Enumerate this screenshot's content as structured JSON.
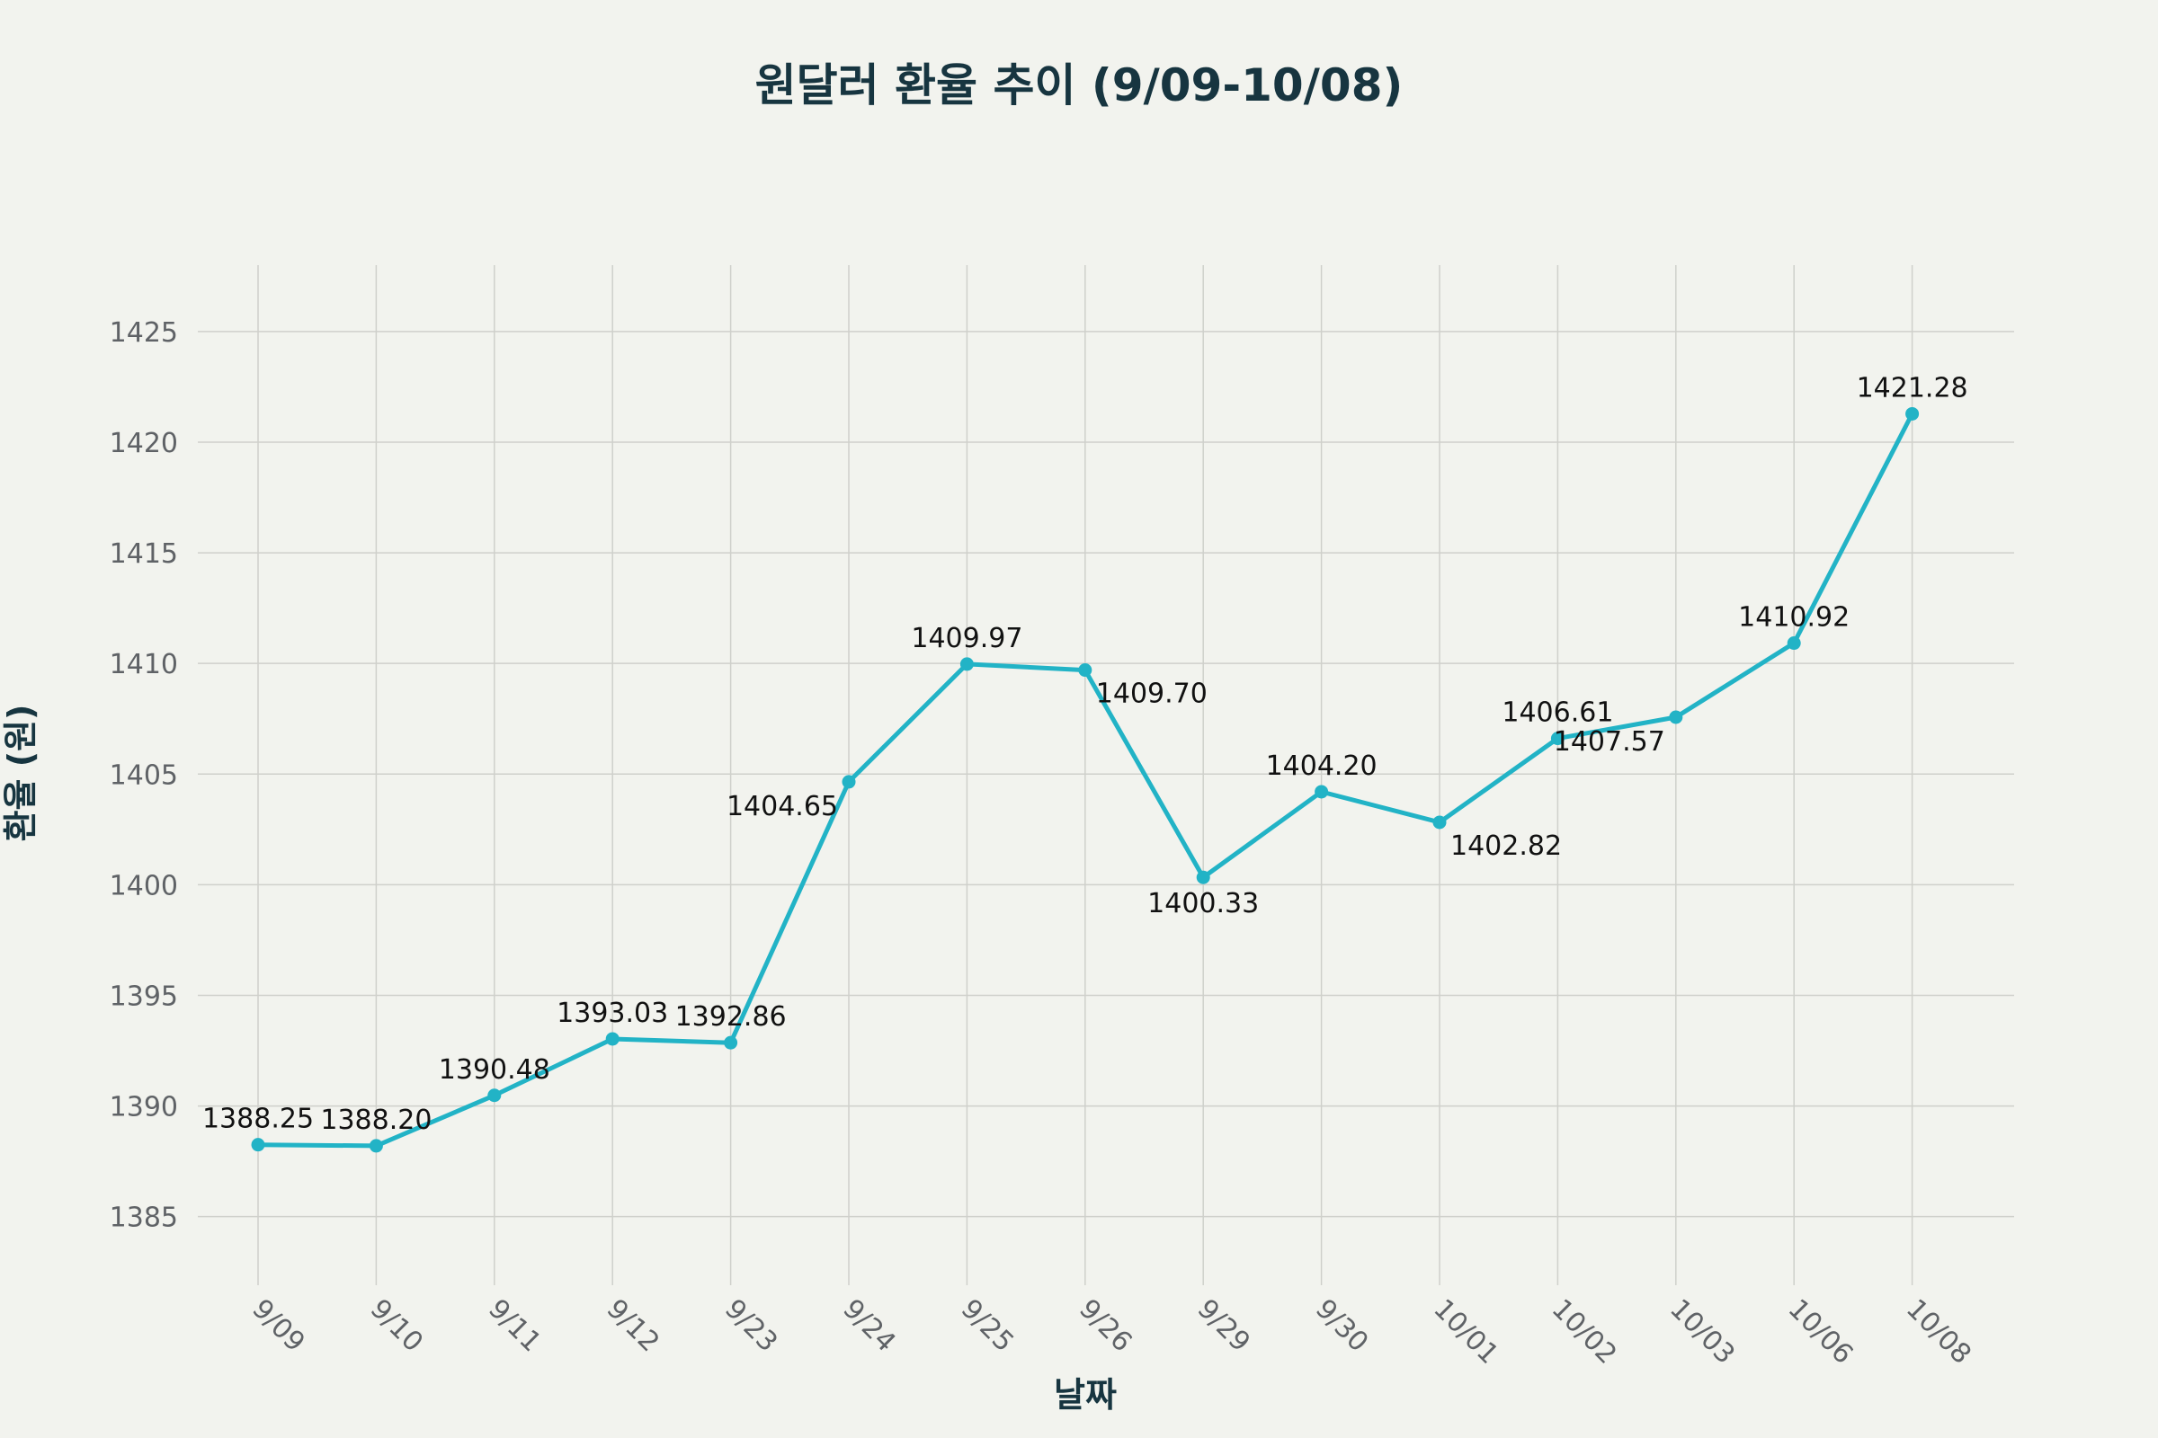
{
  "chart_data": {
    "type": "line",
    "title": "원달러 환율 추이 (9/09-10/08)",
    "xlabel": "날짜",
    "ylabel": "환율 (원)",
    "categories": [
      "9/09",
      "9/10",
      "9/11",
      "9/12",
      "9/23",
      "9/24",
      "9/25",
      "9/26",
      "9/29",
      "9/30",
      "10/01",
      "10/02",
      "10/03",
      "10/06",
      "10/08"
    ],
    "series": [
      {
        "name": "환율",
        "values": [
          1388.25,
          1388.2,
          1390.48,
          1393.03,
          1392.86,
          1404.65,
          1409.97,
          1409.7,
          1400.33,
          1404.2,
          1402.82,
          1406.61,
          1407.57,
          1410.92,
          1421.28
        ],
        "labels": [
          "1388.25",
          "1388.20",
          "1390.48",
          "1393.03",
          "1392.86",
          "1404.65",
          "1409.97",
          "1409.70",
          "1400.33",
          "1404.20",
          "1402.82",
          "1406.61",
          "1407.57",
          "1410.92",
          "1421.28"
        ],
        "label_positions": [
          "top",
          "top",
          "top",
          "top",
          "top",
          "left",
          "top",
          "right",
          "bottom",
          "top",
          "right",
          "top",
          "left",
          "top",
          "top"
        ]
      }
    ],
    "yticks": [
      1385,
      1390,
      1395,
      1400,
      1405,
      1410,
      1415,
      1420,
      1425
    ],
    "ylim": [
      1381.9,
      1428.0
    ],
    "grid": true,
    "legend": "none",
    "colors": {
      "line": "#22b3c6",
      "grid": "#cfd0cb",
      "background": "#f2f3ee",
      "title": "#173540",
      "tick": "#5f6266"
    }
  }
}
